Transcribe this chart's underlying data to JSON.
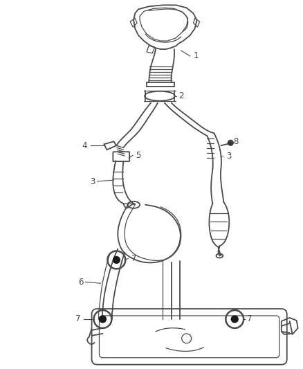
{
  "bg_color": "#ffffff",
  "line_color": "#4a4a4a",
  "label_color": "#444444",
  "label_fontsize": 8.5
}
